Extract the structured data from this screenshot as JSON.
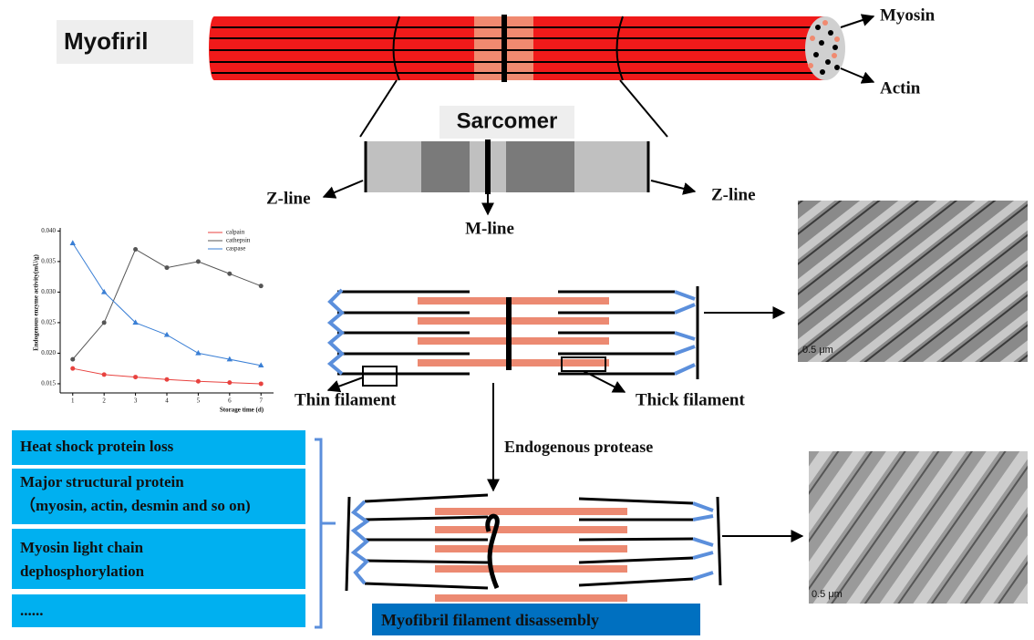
{
  "chart_data": {
    "type": "line",
    "ylabel": "Endogenous enzyme activity(mU/g)",
    "xlabel": "Storage time (d)",
    "x": [
      1,
      2,
      3,
      4,
      5,
      6,
      7
    ],
    "series": [
      {
        "name": "calpain",
        "color": "#e8423f",
        "marker": "circle",
        "values": [
          0.0175,
          0.0165,
          0.0161,
          0.0157,
          0.0154,
          0.0152,
          0.015
        ]
      },
      {
        "name": "cathepsin",
        "color": "#555555",
        "marker": "circle",
        "values": [
          0.019,
          0.025,
          0.037,
          0.034,
          0.035,
          0.033,
          0.031
        ]
      },
      {
        "name": "caspase",
        "color": "#3a7fd5",
        "marker": "triangle",
        "values": [
          0.038,
          0.03,
          0.025,
          0.023,
          0.02,
          0.019,
          0.018
        ]
      }
    ],
    "xlim": [
      0.6,
      7.4
    ],
    "xticks": [
      1,
      2,
      3,
      4,
      5,
      6,
      7
    ],
    "ylim": [
      0.0135,
      0.0405
    ],
    "yticks": [
      0.015,
      {
        "value": 0.02,
        "label": "0.020"
      },
      0.025,
      {
        "value": 0.03,
        "label": "0.030"
      },
      0.035,
      {
        "value": 0.04,
        "label": "0.040"
      }
    ],
    "legend": "upper right"
  },
  "diagram": {
    "myofibril": "Myofiril",
    "myosin": "Myosin",
    "actin": "Actin",
    "sarcomere": "Sarcomer",
    "z_line_left": "Z-line",
    "z_line_right": "Z-line",
    "m_line": "M-line",
    "thin_filament": "Thin filament",
    "thick_filament": "Thick filament",
    "protease": "Endogenous protease",
    "factors": [
      "Heat shock protein loss",
      "Major structural protein",
      "（myosin, actin, desmin and so on)",
      "Myosin light chain",
      "dephosphorylation",
      "......"
    ],
    "result": "Myofibril filament disassembly",
    "scale_top": "0.5 μm",
    "scale_bottom": "0.5 μm"
  }
}
